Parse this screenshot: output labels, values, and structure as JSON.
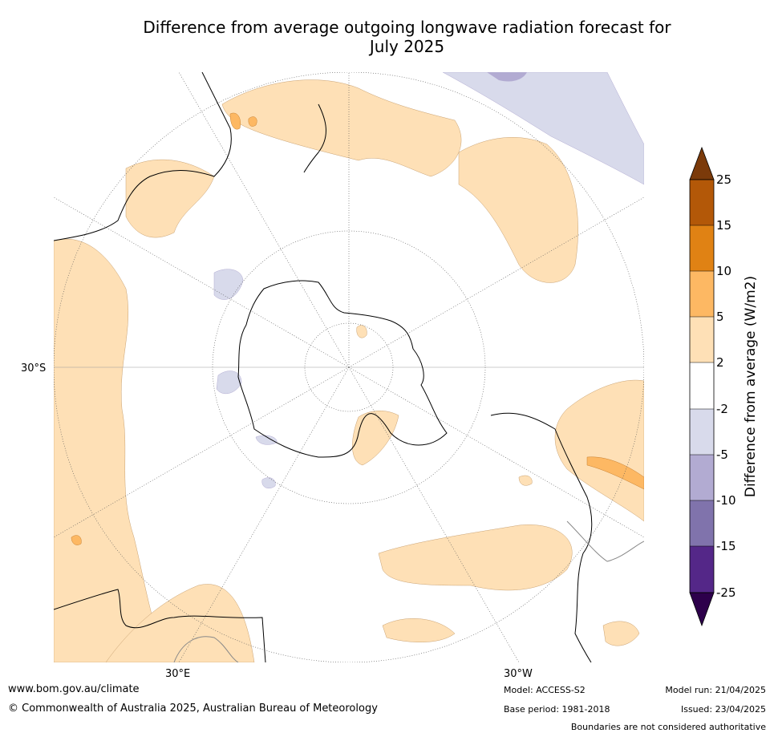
{
  "title_line1": "Difference from average outgoing longwave radiation forecast for",
  "title_line2": "July 2025",
  "lat_label": "30°S",
  "lon_labels": {
    "east": "30°E",
    "west": "30°W"
  },
  "colorbar": {
    "label": "Difference from average (W/m2)",
    "ticks": [
      "25",
      "15",
      "10",
      "5",
      "2",
      "-2",
      "-5",
      "-10",
      "-15",
      "-25"
    ],
    "colors": {
      "gt25": "#7b3a0a",
      "15_25": "#b35808",
      "10_15": "#e08214",
      "5_10": "#fdb863",
      "2_5": "#fee0b6",
      "neutral": "#ffffff",
      "m5_m2": "#d8daeb",
      "m10_m5": "#b2abd2",
      "m15_m10": "#8073ac",
      "m25_m15": "#542788",
      "lt_m25": "#2d004b"
    }
  },
  "footer": {
    "website": "www.bom.gov.au/climate",
    "copyright": "© Commonwealth of Australia 2025, Australian Bureau of Meteorology",
    "model": "Model: ACCESS-S2",
    "base_period": "Base period: 1981-2018",
    "model_run": "Model run: 21/04/2025",
    "issued": "Issued: 23/04/2025",
    "disclaimer": "Boundaries are not considered authoritative"
  }
}
